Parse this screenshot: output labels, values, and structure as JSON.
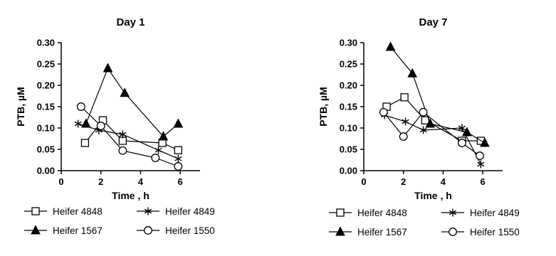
{
  "chart_data": [
    {
      "type": "line",
      "title": "Day 1",
      "xlabel": "Time , h",
      "ylabel": "PTB, µM",
      "xlim": [
        0,
        7
      ],
      "ylim": [
        0,
        0.3
      ],
      "xticks": [
        0,
        2,
        4,
        6
      ],
      "xtick_labels": [
        "0",
        "2",
        "4",
        "6"
      ],
      "yticks": [
        0,
        0.05,
        0.1,
        0.15,
        0.2,
        0.25,
        0.3
      ],
      "ytick_labels": [
        "0.00",
        "0.05",
        "0.10",
        "0.15",
        "0.20",
        "0.25",
        "0.30"
      ],
      "grid": false,
      "legend_position": "bottom",
      "series": [
        {
          "name": "Heifer 4848",
          "marker": "open-square",
          "points": [
            [
              1.2,
              0.065
            ],
            [
              2.1,
              0.118
            ],
            [
              3.1,
              0.07
            ],
            [
              5.1,
              0.065
            ],
            [
              5.9,
              0.048
            ]
          ]
        },
        {
          "name": "Heifer 4849",
          "marker": "asterisk",
          "points": [
            [
              0.85,
              0.11
            ],
            [
              1.9,
              0.095
            ],
            [
              3.1,
              0.085
            ],
            [
              4.9,
              0.048
            ],
            [
              5.9,
              0.028
            ]
          ]
        },
        {
          "name": "Heifer 1567",
          "marker": "filled-triangle",
          "points": [
            [
              1.25,
              0.11
            ],
            [
              2.35,
              0.24
            ],
            [
              3.2,
              0.182
            ],
            [
              5.15,
              0.08
            ],
            [
              5.9,
              0.11
            ]
          ]
        },
        {
          "name": "Heifer 1550",
          "marker": "open-circle",
          "points": [
            [
              1.0,
              0.15
            ],
            [
              2.0,
              0.105
            ],
            [
              3.1,
              0.047
            ],
            [
              4.75,
              0.03
            ],
            [
              5.9,
              0.01
            ]
          ]
        }
      ]
    },
    {
      "type": "line",
      "title": "Day 7",
      "xlabel": "Time , h",
      "ylabel": "PTB, µM",
      "xlim": [
        0,
        7
      ],
      "ylim": [
        0,
        0.3
      ],
      "xticks": [
        0,
        2,
        4,
        6
      ],
      "xtick_labels": [
        "0",
        "2",
        "4",
        "6"
      ],
      "yticks": [
        0,
        0.05,
        0.1,
        0.15,
        0.2,
        0.25,
        0.3
      ],
      "ytick_labels": [
        "0.00",
        "0.05",
        "0.10",
        "0.15",
        "0.20",
        "0.25",
        "0.30"
      ],
      "grid": false,
      "legend_position": "bottom",
      "series": [
        {
          "name": "Heifer 4848",
          "marker": "open-square",
          "points": [
            [
              1.15,
              0.15
            ],
            [
              2.05,
              0.172
            ],
            [
              3.1,
              0.118
            ],
            [
              4.95,
              0.07
            ],
            [
              5.9,
              0.07
            ]
          ]
        },
        {
          "name": "Heifer 4849",
          "marker": "asterisk",
          "points": [
            [
              1.05,
              0.13
            ],
            [
              2.1,
              0.115
            ],
            [
              3.0,
              0.095
            ],
            [
              4.95,
              0.1
            ],
            [
              5.9,
              0.015
            ]
          ]
        },
        {
          "name": "Heifer 1567",
          "marker": "filled-triangle",
          "points": [
            [
              1.35,
              0.29
            ],
            [
              2.45,
              0.228
            ],
            [
              3.35,
              0.11
            ],
            [
              5.2,
              0.09
            ],
            [
              6.1,
              0.065
            ]
          ]
        },
        {
          "name": "Heifer 1550",
          "marker": "open-circle",
          "points": [
            [
              1.0,
              0.137
            ],
            [
              2.0,
              0.08
            ],
            [
              3.0,
              0.137
            ],
            [
              4.95,
              0.065
            ],
            [
              5.85,
              0.035
            ]
          ]
        }
      ]
    }
  ]
}
